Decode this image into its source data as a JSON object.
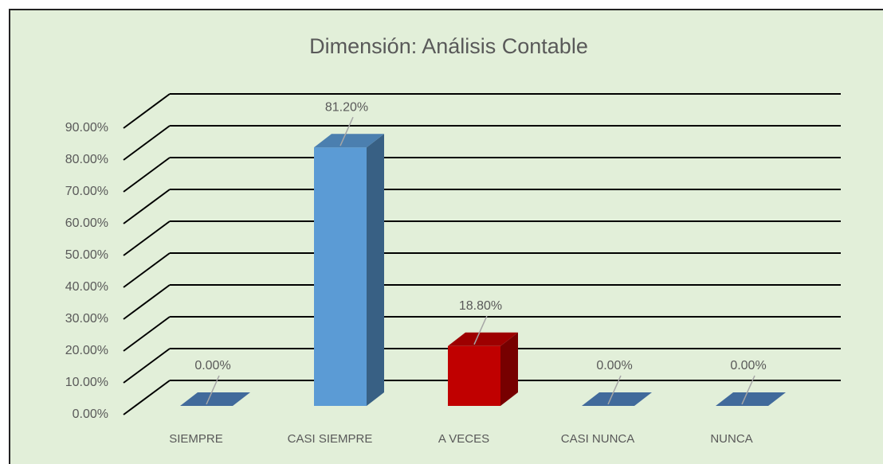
{
  "chart_data": {
    "type": "bar3d",
    "title": "Dimensión: Análisis Contable",
    "categories": [
      "SIEMPRE",
      "CASI SIEMPRE",
      "A VECES",
      "CASI NUNCA",
      "NUNCA"
    ],
    "values": [
      0,
      81.2,
      18.8,
      0,
      0
    ],
    "value_labels": [
      "0.00%",
      "81.20%",
      "18.80%",
      "0.00%",
      "0.00%"
    ],
    "colors": [
      "#4f81bd",
      "#5b9bd5",
      "#c00000",
      "#4f81bd",
      "#4f81bd"
    ],
    "ylim": [
      0,
      90
    ],
    "yticks": [
      {
        "value": 0,
        "label": "0.00%"
      },
      {
        "value": 10,
        "label": "10.00%"
      },
      {
        "value": 20,
        "label": "20.00%"
      },
      {
        "value": 30,
        "label": "30.00%"
      },
      {
        "value": 40,
        "label": "40.00%"
      },
      {
        "value": 50,
        "label": "50.00%"
      },
      {
        "value": 60,
        "label": "60.00%"
      },
      {
        "value": 70,
        "label": "70.00%"
      },
      {
        "value": 80,
        "label": "80.00%"
      },
      {
        "value": 90,
        "label": "90.00%"
      }
    ],
    "grid": true
  }
}
